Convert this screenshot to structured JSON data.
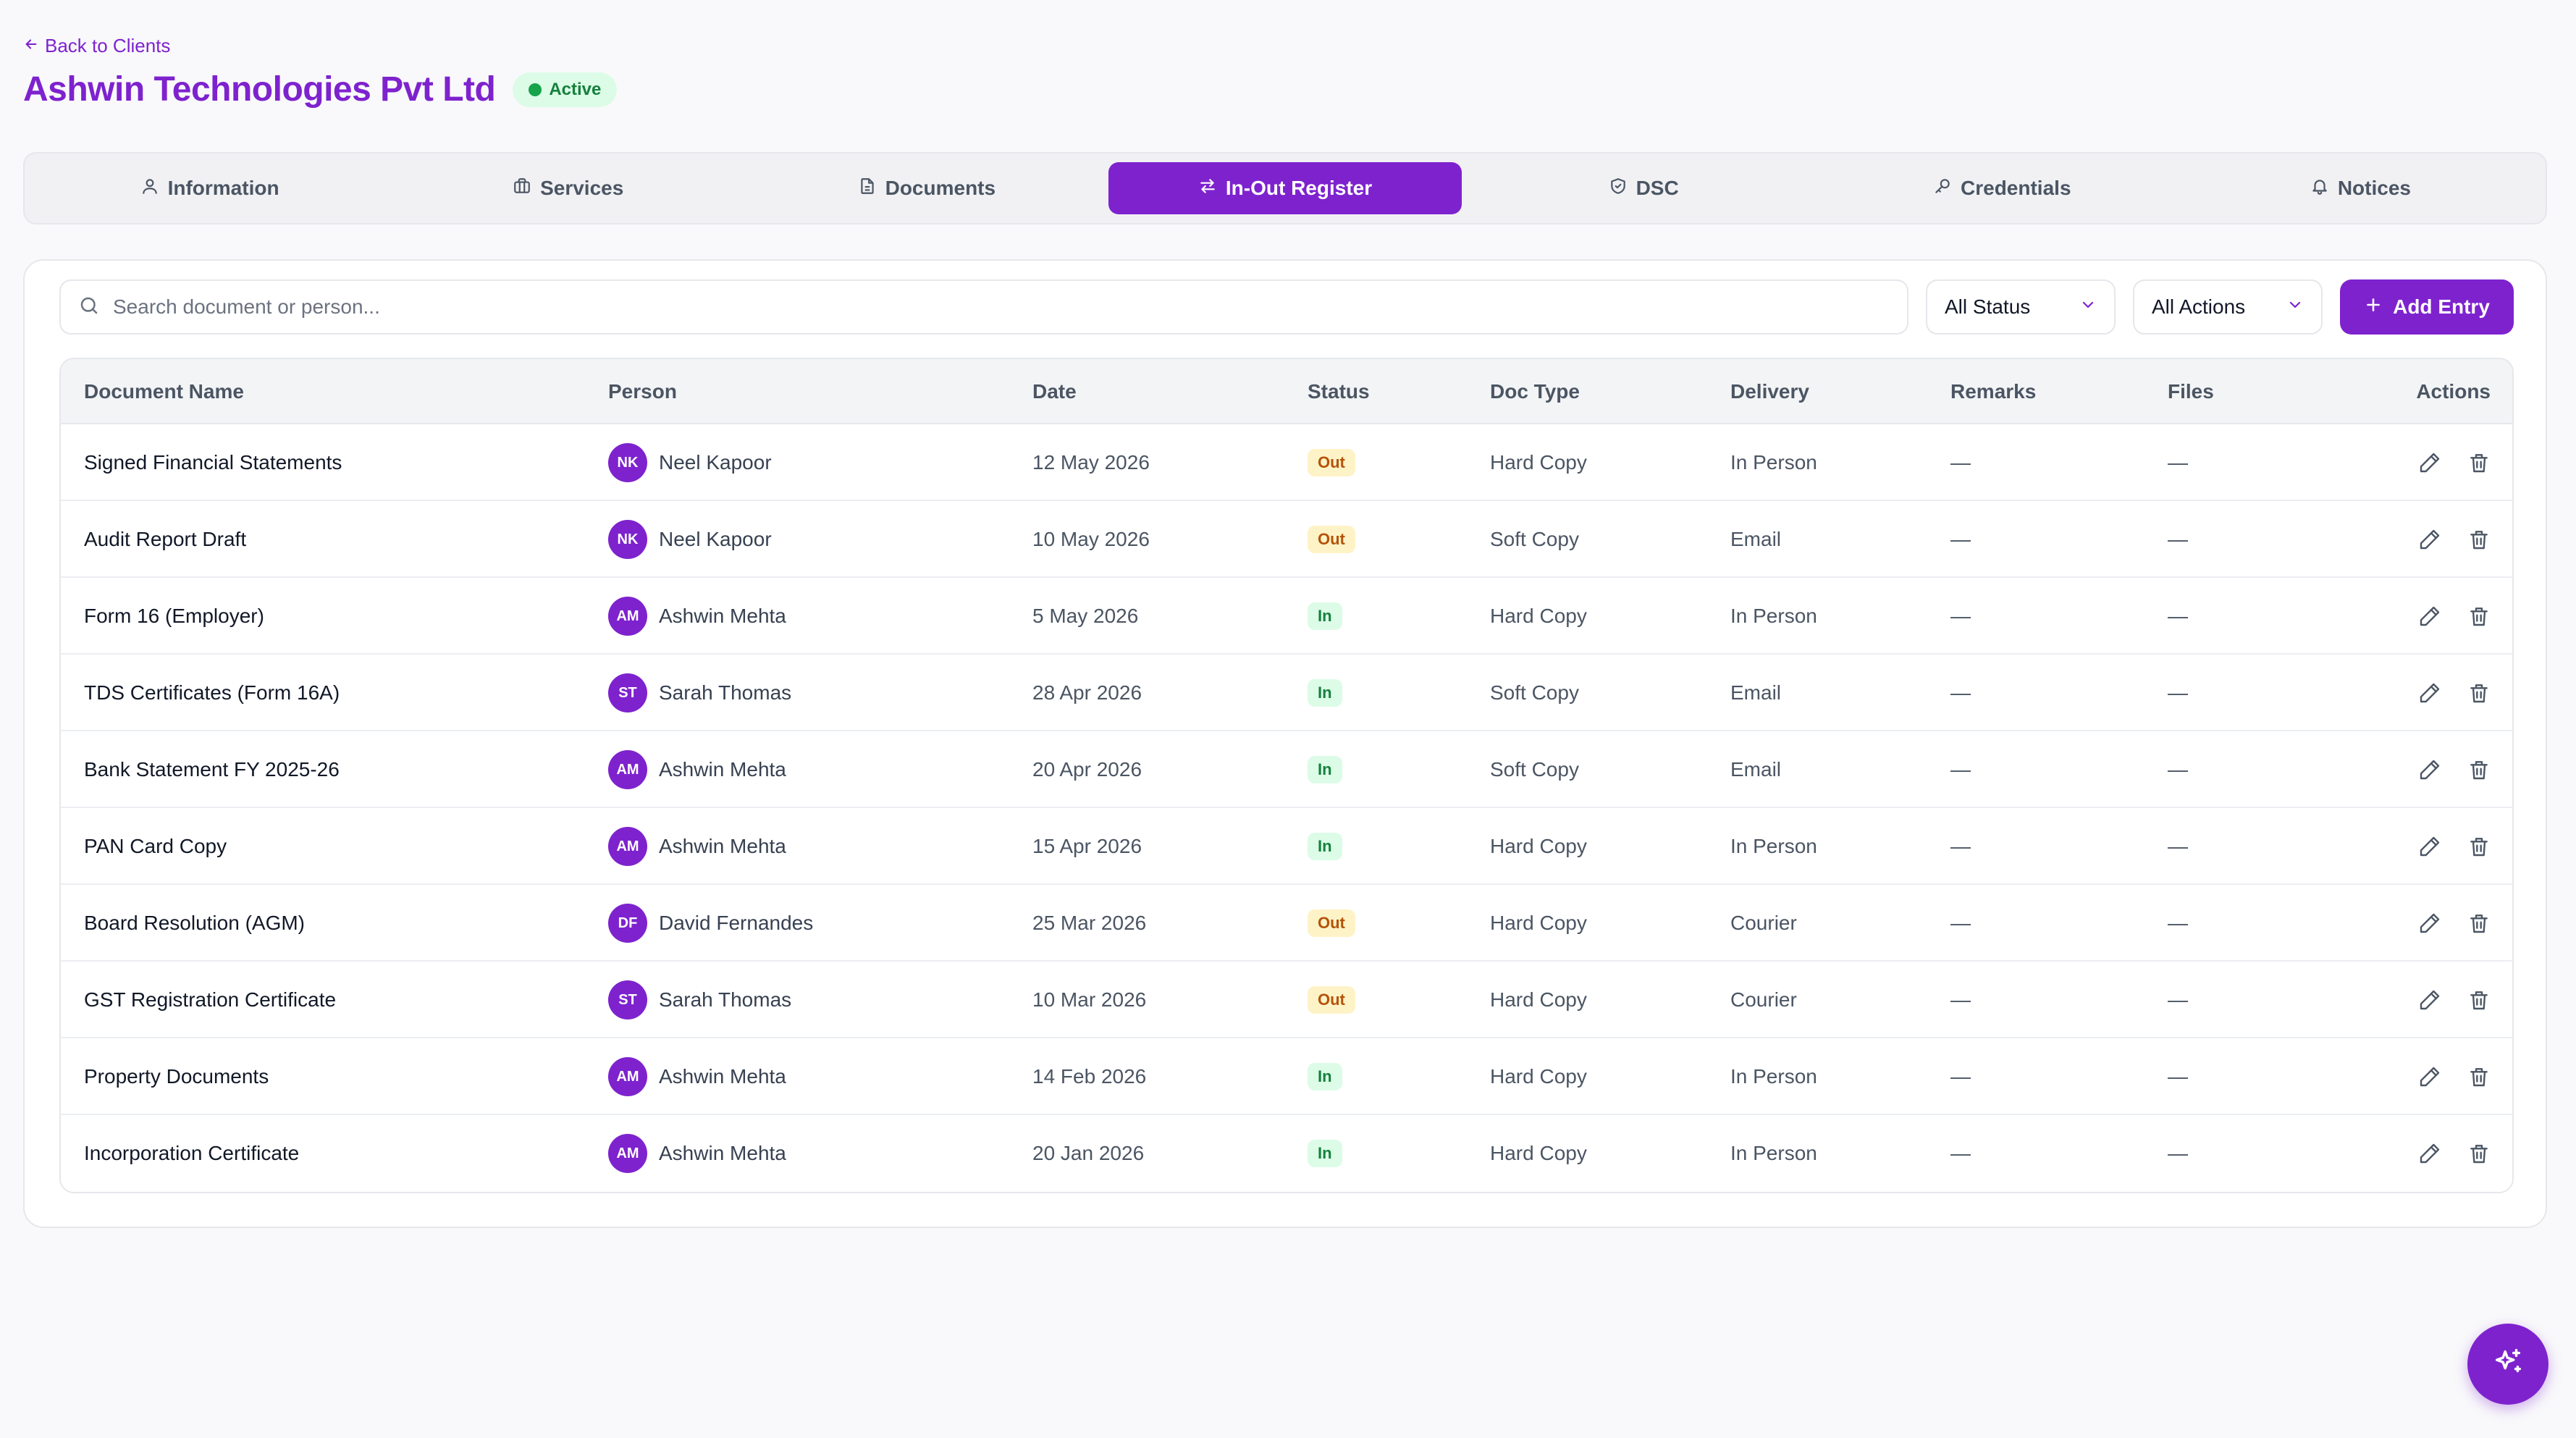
{
  "header": {
    "back_label": "Back to Clients",
    "title": "Ashwin Technologies Pvt Ltd",
    "status": "Active"
  },
  "tabs": [
    {
      "label": "Information",
      "icon": "user-icon"
    },
    {
      "label": "Services",
      "icon": "briefcase-icon"
    },
    {
      "label": "Documents",
      "icon": "file-icon"
    },
    {
      "label": "In-Out Register",
      "icon": "arrows-swap-icon",
      "active": true
    },
    {
      "label": "DSC",
      "icon": "shield-icon"
    },
    {
      "label": "Credentials",
      "icon": "key-icon"
    },
    {
      "label": "Notices",
      "icon": "bell-icon"
    }
  ],
  "toolbar": {
    "search_placeholder": "Search document or person...",
    "status_filter": "All Status",
    "action_filter": "All Actions",
    "add_label": "Add Entry"
  },
  "table": {
    "columns": [
      "Document Name",
      "Person",
      "Date",
      "Status",
      "Doc Type",
      "Delivery",
      "Remarks",
      "Files",
      "Actions"
    ],
    "rows": [
      {
        "doc": "Signed Financial Statements",
        "initials": "NK",
        "person": "Neel Kapoor",
        "date": "12 May 2026",
        "status": "Out",
        "type": "Hard Copy",
        "delivery": "In Person",
        "remarks": "—",
        "files": "—"
      },
      {
        "doc": "Audit Report Draft",
        "initials": "NK",
        "person": "Neel Kapoor",
        "date": "10 May 2026",
        "status": "Out",
        "type": "Soft Copy",
        "delivery": "Email",
        "remarks": "—",
        "files": "—"
      },
      {
        "doc": "Form 16 (Employer)",
        "initials": "AM",
        "person": "Ashwin Mehta",
        "date": "5 May 2026",
        "status": "In",
        "type": "Hard Copy",
        "delivery": "In Person",
        "remarks": "—",
        "files": "—"
      },
      {
        "doc": "TDS Certificates (Form 16A)",
        "initials": "ST",
        "person": "Sarah Thomas",
        "date": "28 Apr 2026",
        "status": "In",
        "type": "Soft Copy",
        "delivery": "Email",
        "remarks": "—",
        "files": "—"
      },
      {
        "doc": "Bank Statement FY 2025-26",
        "initials": "AM",
        "person": "Ashwin Mehta",
        "date": "20 Apr 2026",
        "status": "In",
        "type": "Soft Copy",
        "delivery": "Email",
        "remarks": "—",
        "files": "—"
      },
      {
        "doc": "PAN Card Copy",
        "initials": "AM",
        "person": "Ashwin Mehta",
        "date": "15 Apr 2026",
        "status": "In",
        "type": "Hard Copy",
        "delivery": "In Person",
        "remarks": "—",
        "files": "—"
      },
      {
        "doc": "Board Resolution (AGM)",
        "initials": "DF",
        "person": "David Fernandes",
        "date": "25 Mar 2026",
        "status": "Out",
        "type": "Hard Copy",
        "delivery": "Courier",
        "remarks": "—",
        "files": "—"
      },
      {
        "doc": "GST Registration Certificate",
        "initials": "ST",
        "person": "Sarah Thomas",
        "date": "10 Mar 2026",
        "status": "Out",
        "type": "Hard Copy",
        "delivery": "Courier",
        "remarks": "—",
        "files": "—"
      },
      {
        "doc": "Property Documents",
        "initials": "AM",
        "person": "Ashwin Mehta",
        "date": "14 Feb 2026",
        "status": "In",
        "type": "Hard Copy",
        "delivery": "In Person",
        "remarks": "—",
        "files": "—"
      },
      {
        "doc": "Incorporation Certificate",
        "initials": "AM",
        "person": "Ashwin Mehta",
        "date": "20 Jan 2026",
        "status": "In",
        "type": "Hard Copy",
        "delivery": "In Person",
        "remarks": "—",
        "files": "—"
      }
    ]
  },
  "colors": {
    "accent": "#7e22ce",
    "active_green": "#16a34a",
    "out_badge_bg": "#fef3c7",
    "in_badge_bg": "#dcfce7"
  },
  "fab": {
    "icon": "sparkles-icon"
  }
}
